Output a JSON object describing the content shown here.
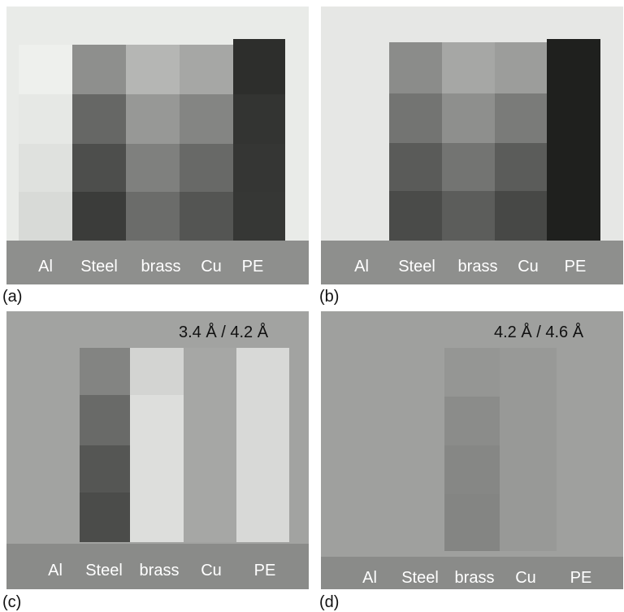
{
  "panels": {
    "a": {
      "tag": "(a)",
      "materials": [
        "Al",
        "Steel",
        "brass",
        "Cu",
        "PE"
      ]
    },
    "b": {
      "tag": "(b)",
      "materials": [
        "Al",
        "Steel",
        "brass",
        "Cu",
        "PE"
      ]
    },
    "c": {
      "tag": "(c)",
      "ratio": "3.4 Å / 4.2 Å",
      "materials": [
        "Al",
        "Steel",
        "brass",
        "Cu",
        "PE"
      ]
    },
    "d": {
      "tag": "(d)",
      "ratio": "4.2 Å / 4.6 Å",
      "materials": [
        "Al",
        "Steel",
        "brass",
        "Cu",
        "PE"
      ]
    }
  },
  "colors": {
    "panel_a_bg": "#e9ebe8",
    "panel_b_bg": "#e6e7e5",
    "panel_c_bg": "#a2a3a1",
    "panel_d_bg": "#9fa09e",
    "base_strip_ab": "#8e8f8d",
    "base_strip_cd": "#8a8b89"
  }
}
